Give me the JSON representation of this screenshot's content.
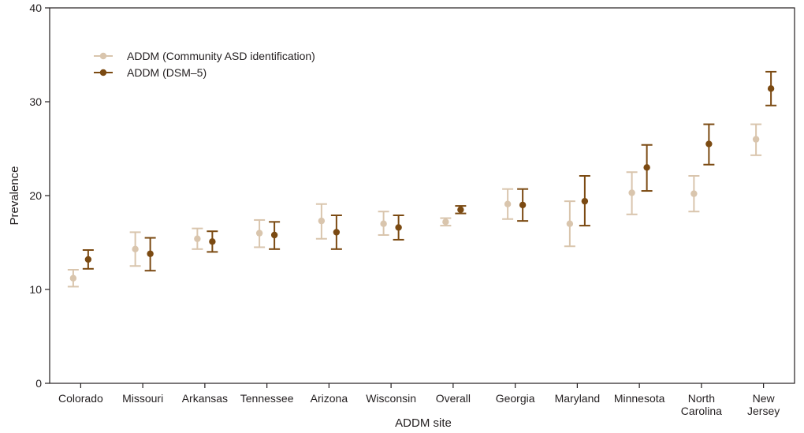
{
  "chart_data": {
    "type": "scatter",
    "xlabel": "ADDM site",
    "ylabel": "Prevalence",
    "ylim": [
      0,
      40
    ],
    "yticks": [
      0,
      10,
      20,
      30,
      40
    ],
    "grid": false,
    "legend_position": "top-left",
    "categories": [
      [
        "Colorado"
      ],
      [
        "Missouri"
      ],
      [
        "Arkansas"
      ],
      [
        "Tennessee"
      ],
      [
        "Arizona"
      ],
      [
        "Wisconsin"
      ],
      [
        "Overall"
      ],
      [
        "Georgia"
      ],
      [
        "Maryland"
      ],
      [
        "Minnesota"
      ],
      [
        "North",
        "Carolina"
      ],
      [
        "New",
        "Jersey"
      ]
    ],
    "series": [
      {
        "name": "ADDM (Community ASD identification)",
        "color": "#d9c5ad",
        "values": [
          11.2,
          14.3,
          15.4,
          16.0,
          17.3,
          17.0,
          17.2,
          19.1,
          17.0,
          20.3,
          20.2,
          26.0
        ],
        "lower": [
          10.3,
          12.5,
          14.3,
          14.5,
          15.4,
          15.8,
          16.8,
          17.5,
          14.6,
          18.0,
          18.3,
          24.3
        ],
        "upper": [
          12.1,
          16.1,
          16.5,
          17.4,
          19.1,
          18.3,
          17.6,
          20.7,
          19.4,
          22.5,
          22.1,
          27.6
        ]
      },
      {
        "name": "ADDM (DSM–5)",
        "color": "#7b4a12",
        "values": [
          13.2,
          13.8,
          15.1,
          15.8,
          16.1,
          16.6,
          18.5,
          19.0,
          19.4,
          23.0,
          25.5,
          31.4
        ],
        "lower": [
          12.2,
          12.0,
          14.0,
          14.3,
          14.3,
          15.3,
          18.1,
          17.3,
          16.8,
          20.5,
          23.3,
          29.6
        ],
        "upper": [
          14.2,
          15.5,
          16.2,
          17.2,
          17.9,
          17.9,
          18.9,
          20.7,
          22.1,
          25.4,
          27.6,
          33.2
        ]
      }
    ]
  }
}
